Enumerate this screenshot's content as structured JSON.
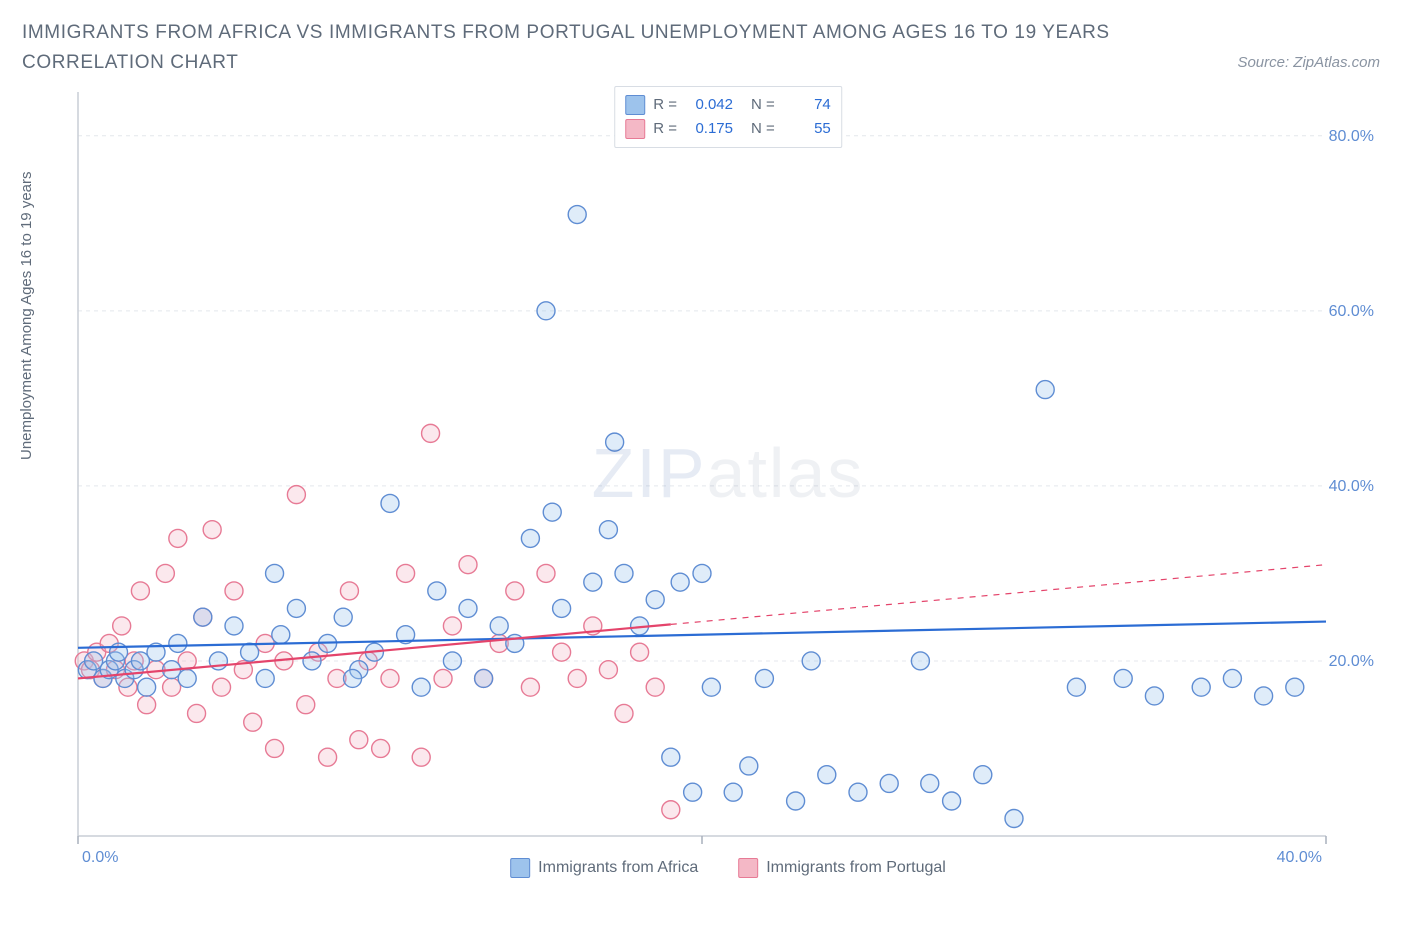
{
  "title": "IMMIGRANTS FROM AFRICA VS IMMIGRANTS FROM PORTUGAL UNEMPLOYMENT AMONG AGES 16 TO 19 YEARS CORRELATION CHART",
  "source": "Source: ZipAtlas.com",
  "ylabel": "Unemployment Among Ages 16 to 19 years",
  "watermark": {
    "part1": "ZIP",
    "part2": "atlas"
  },
  "chart": {
    "type": "scatter",
    "xlim": [
      0,
      40
    ],
    "ylim": [
      0,
      85
    ],
    "xtick_step": 20,
    "xtick_labels": [
      "0.0%",
      "40.0%"
    ],
    "ytick_step": 20,
    "ytick_labels": [
      "20.0%",
      "40.0%",
      "60.0%",
      "80.0%"
    ],
    "grid_color": "#e4e7ec",
    "axis_color": "#c9ced6",
    "tick_color": "#a8b0bc",
    "tick_label_color": "#5f8dd3",
    "background_color": "#ffffff",
    "marker_radius": 9,
    "marker_stroke_width": 1.4,
    "marker_fill_opacity": 0.32,
    "trend_line_width": 2.2,
    "series": [
      {
        "name": "Immigrants from Africa",
        "color_fill": "#9dc3ec",
        "color_stroke": "#5f8dd3",
        "trend_color": "#2b6cd4",
        "R": "0.042",
        "N": "74",
        "trend": {
          "x1": 0,
          "y1": 21.5,
          "x2": 40,
          "y2": 24.5,
          "dash_from_x": null
        },
        "points": [
          [
            0.3,
            19
          ],
          [
            0.5,
            20
          ],
          [
            0.8,
            18
          ],
          [
            1.0,
            19
          ],
          [
            1.2,
            20
          ],
          [
            1.3,
            21
          ],
          [
            1.5,
            18
          ],
          [
            1.8,
            19
          ],
          [
            2.0,
            20
          ],
          [
            2.2,
            17
          ],
          [
            2.5,
            21
          ],
          [
            3.0,
            19
          ],
          [
            3.2,
            22
          ],
          [
            3.5,
            18
          ],
          [
            4.0,
            25
          ],
          [
            4.5,
            20
          ],
          [
            5.0,
            24
          ],
          [
            5.5,
            21
          ],
          [
            6.0,
            18
          ],
          [
            6.5,
            23
          ],
          [
            7.0,
            26
          ],
          [
            7.5,
            20
          ],
          [
            8.0,
            22
          ],
          [
            8.5,
            25
          ],
          [
            9.0,
            19
          ],
          [
            9.5,
            21
          ],
          [
            10.0,
            38
          ],
          [
            10.5,
            23
          ],
          [
            11.0,
            17
          ],
          [
            11.5,
            28
          ],
          [
            12.0,
            20
          ],
          [
            12.5,
            26
          ],
          [
            13.0,
            18
          ],
          [
            13.5,
            24
          ],
          [
            14.0,
            22
          ],
          [
            14.5,
            34
          ],
          [
            15.0,
            60
          ],
          [
            15.2,
            37
          ],
          [
            15.5,
            26
          ],
          [
            16.0,
            71
          ],
          [
            16.5,
            29
          ],
          [
            17.0,
            35
          ],
          [
            17.2,
            45
          ],
          [
            17.5,
            30
          ],
          [
            18.0,
            24
          ],
          [
            18.5,
            27
          ],
          [
            19.0,
            9
          ],
          [
            19.3,
            29
          ],
          [
            19.7,
            5
          ],
          [
            20.0,
            30
          ],
          [
            20.3,
            17
          ],
          [
            21.0,
            5
          ],
          [
            21.5,
            8
          ],
          [
            22.0,
            18
          ],
          [
            23.0,
            4
          ],
          [
            23.5,
            20
          ],
          [
            24.0,
            7
          ],
          [
            25.0,
            5
          ],
          [
            26.0,
            6
          ],
          [
            27.0,
            20
          ],
          [
            27.3,
            6
          ],
          [
            28.0,
            4
          ],
          [
            29.0,
            7
          ],
          [
            30.0,
            2
          ],
          [
            31.0,
            51
          ],
          [
            32.0,
            17
          ],
          [
            33.5,
            18
          ],
          [
            34.5,
            16
          ],
          [
            36.0,
            17
          ],
          [
            37.0,
            18
          ],
          [
            38.0,
            16
          ],
          [
            39.0,
            17
          ],
          [
            6.3,
            30
          ],
          [
            8.8,
            18
          ]
        ]
      },
      {
        "name": "Immigrants from Portugal",
        "color_fill": "#f4b8c6",
        "color_stroke": "#e77a95",
        "trend_color": "#e4446b",
        "R": "0.175",
        "N": "55",
        "trend": {
          "x1": 0,
          "y1": 18.0,
          "x2": 40,
          "y2": 31.0,
          "dash_from_x": 19
        },
        "points": [
          [
            0.2,
            20
          ],
          [
            0.4,
            19
          ],
          [
            0.6,
            21
          ],
          [
            0.8,
            18
          ],
          [
            1.0,
            22
          ],
          [
            1.2,
            19
          ],
          [
            1.4,
            24
          ],
          [
            1.6,
            17
          ],
          [
            1.8,
            20
          ],
          [
            2.0,
            28
          ],
          [
            2.2,
            15
          ],
          [
            2.5,
            19
          ],
          [
            2.8,
            30
          ],
          [
            3.0,
            17
          ],
          [
            3.2,
            34
          ],
          [
            3.5,
            20
          ],
          [
            3.8,
            14
          ],
          [
            4.0,
            25
          ],
          [
            4.3,
            35
          ],
          [
            4.6,
            17
          ],
          [
            5.0,
            28
          ],
          [
            5.3,
            19
          ],
          [
            5.6,
            13
          ],
          [
            6.0,
            22
          ],
          [
            6.3,
            10
          ],
          [
            6.6,
            20
          ],
          [
            7.0,
            39
          ],
          [
            7.3,
            15
          ],
          [
            7.7,
            21
          ],
          [
            8.0,
            9
          ],
          [
            8.3,
            18
          ],
          [
            8.7,
            28
          ],
          [
            9.0,
            11
          ],
          [
            9.3,
            20
          ],
          [
            9.7,
            10
          ],
          [
            10.0,
            18
          ],
          [
            10.5,
            30
          ],
          [
            11.0,
            9
          ],
          [
            11.3,
            46
          ],
          [
            11.7,
            18
          ],
          [
            12.0,
            24
          ],
          [
            12.5,
            31
          ],
          [
            13.0,
            18
          ],
          [
            13.5,
            22
          ],
          [
            14.0,
            28
          ],
          [
            14.5,
            17
          ],
          [
            15.0,
            30
          ],
          [
            15.5,
            21
          ],
          [
            16.0,
            18
          ],
          [
            16.5,
            24
          ],
          [
            17.0,
            19
          ],
          [
            17.5,
            14
          ],
          [
            18.0,
            21
          ],
          [
            18.5,
            17
          ],
          [
            19.0,
            3
          ]
        ]
      }
    ]
  },
  "bottom_legend": [
    {
      "label": "Immigrants from Africa",
      "fill": "#9dc3ec",
      "stroke": "#5f8dd3"
    },
    {
      "label": "Immigrants from Portugal",
      "fill": "#f4b8c6",
      "stroke": "#e77a95"
    }
  ]
}
